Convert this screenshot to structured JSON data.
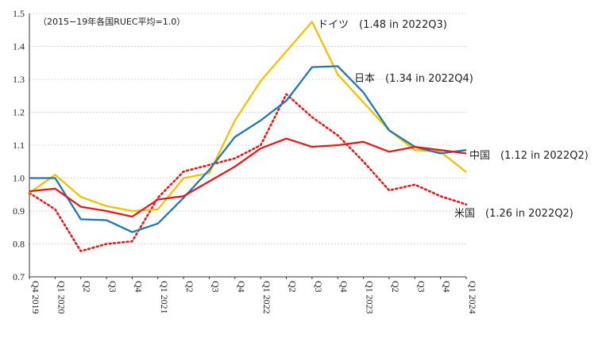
{
  "chart_data": {
    "type": "line",
    "note": "（2015−19年各国RUEC平均=1.0）",
    "categories": [
      "Q4 2019",
      "Q1 2020",
      "Q2",
      "Q3",
      "Q4",
      "Q1 2021",
      "Q2",
      "Q3",
      "Q4",
      "Q1 2022",
      "Q2",
      "Q3",
      "Q4",
      "Q1 2023",
      "Q2",
      "Q3",
      "Q4",
      "Q1 2024"
    ],
    "ylim": [
      0.7,
      1.5
    ],
    "yticks": [
      "0.7",
      "0.8",
      "0.9",
      "1.0",
      "1.1",
      "1.2",
      "1.3",
      "1.4",
      "1.5"
    ],
    "grid": "horizontal dotted",
    "series": [
      {
        "name": "日本",
        "label": "日本　(1.34 in 2022Q4)",
        "color": "#1f77b4",
        "style": "solid",
        "values": [
          1.0,
          1.0,
          0.875,
          0.872,
          0.836,
          0.862,
          0.94,
          1.025,
          1.125,
          1.175,
          1.235,
          1.337,
          1.34,
          1.26,
          1.145,
          1.095,
          1.075,
          1.085
        ]
      },
      {
        "name": "ドイツ",
        "label": "ドイツ　(1.48 in 2022Q3)",
        "color": "#f5c000",
        "style": "solid",
        "values": [
          0.955,
          1.01,
          0.943,
          0.915,
          0.9,
          0.905,
          1.0,
          1.015,
          1.175,
          1.295,
          1.385,
          1.475,
          1.315,
          1.23,
          1.145,
          1.085,
          1.08,
          1.018
        ]
      },
      {
        "name": "中国",
        "label": "中国　(1.12 in 2022Q2)",
        "color": "#e41a1c",
        "style": "solid",
        "values": [
          0.96,
          0.968,
          0.913,
          0.9,
          0.883,
          0.935,
          0.945,
          0.99,
          1.035,
          1.09,
          1.12,
          1.095,
          1.1,
          1.11,
          1.08,
          1.095,
          1.085,
          1.075
        ]
      },
      {
        "name": "米国",
        "label": "米国　(1.26 in 2022Q2)",
        "color": "#e41a1c",
        "style": "dotted",
        "values": [
          0.955,
          0.905,
          0.778,
          0.8,
          0.808,
          0.94,
          1.02,
          1.04,
          1.06,
          1.1,
          1.255,
          1.185,
          1.13,
          1.05,
          0.963,
          0.98,
          0.945,
          0.92
        ]
      }
    ]
  }
}
